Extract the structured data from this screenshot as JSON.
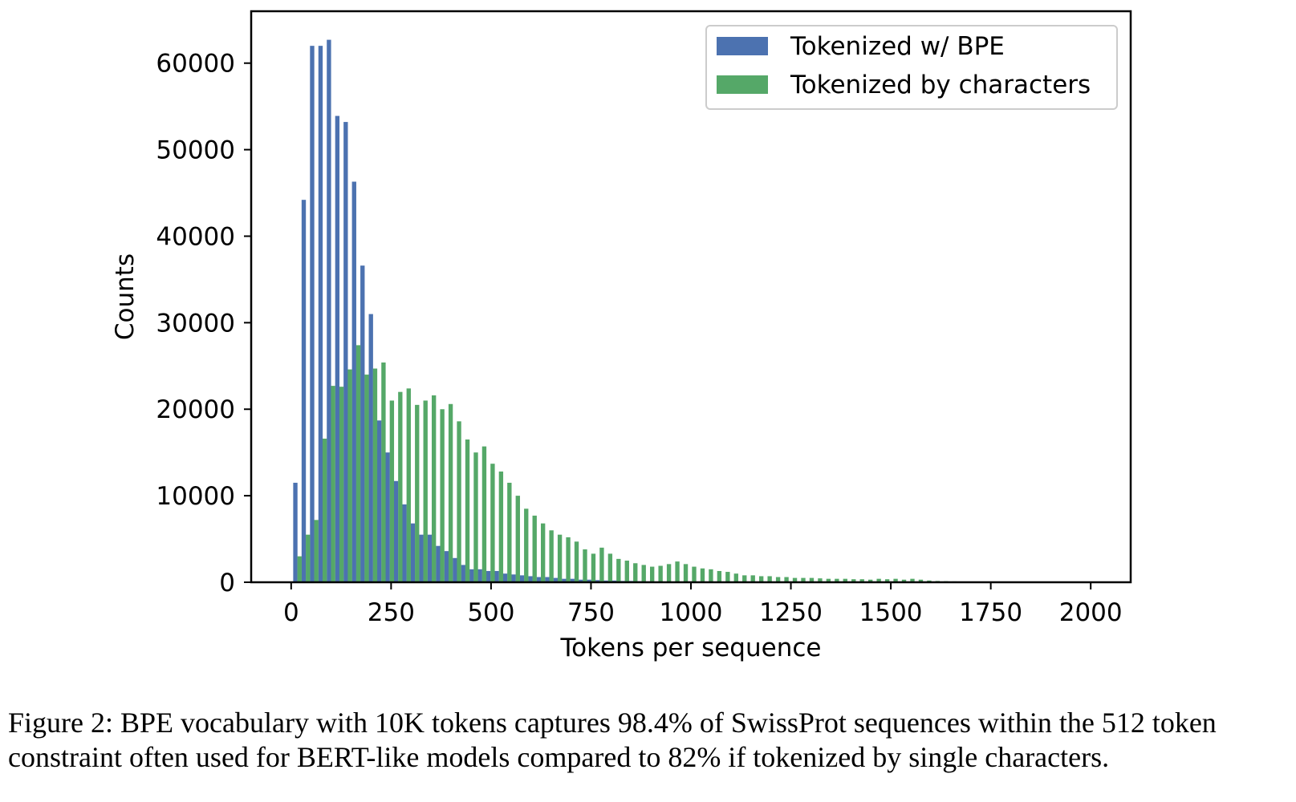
{
  "chart_data": {
    "type": "bar",
    "xlabel": "Tokens per sequence",
    "ylabel": "Counts",
    "xlim": [
      -100,
      2100
    ],
    "ylim": [
      0,
      66000
    ],
    "xticks": [
      0,
      250,
      500,
      750,
      1000,
      1250,
      1500,
      1750,
      2000
    ],
    "yticks": [
      0,
      10000,
      20000,
      30000,
      40000,
      50000,
      60000
    ],
    "bin_width": 21.5,
    "legend_position": "top-right",
    "grid": false,
    "series": [
      {
        "name": "Tokenized w/ BPE",
        "color": "#4c72b0",
        "x": [
          10.5,
          31.5,
          52.5,
          73.5,
          94.5,
          115.5,
          136.5,
          157.5,
          178.5,
          199.5,
          220.5,
          241.5,
          262.5,
          283.5,
          304.5,
          325.5,
          346.5,
          367.5,
          388.5,
          409.5,
          430.5,
          451.5,
          472.5,
          493.5,
          514.5,
          535.5,
          556.5,
          577.5,
          598.5,
          619.5,
          640.5,
          661.5,
          682.5,
          703.5,
          724.5,
          745.5,
          766.5,
          787.5,
          808.5,
          829.5,
          850.5,
          871.5,
          892.5,
          913.5,
          934.5,
          955.5,
          976.5
        ],
        "values": [
          11500,
          44200,
          62000,
          62000,
          62700,
          53900,
          53200,
          46300,
          36600,
          31000,
          18700,
          15000,
          11700,
          9000,
          6800,
          5500,
          5500,
          4200,
          3600,
          2800,
          2000,
          1500,
          1500,
          1300,
          1300,
          1000,
          900,
          800,
          700,
          600,
          600,
          500,
          400,
          400,
          300,
          300,
          250,
          200,
          200,
          150,
          150,
          120,
          100,
          80,
          60,
          50,
          40
        ]
      },
      {
        "name": "Tokenized by characters",
        "color": "#55a868",
        "x": [
          21,
          42,
          63,
          84,
          105,
          126,
          147,
          168,
          189,
          210,
          231,
          252,
          273,
          294,
          315,
          336,
          357,
          378,
          399,
          420,
          441,
          462,
          483,
          504,
          525,
          546,
          567,
          588,
          609,
          630,
          651,
          672,
          693,
          714,
          735,
          756,
          777,
          798,
          819,
          840,
          861,
          882,
          903,
          924,
          945,
          966,
          987,
          1008,
          1029,
          1050,
          1071,
          1092,
          1113,
          1134,
          1155,
          1176,
          1197,
          1218,
          1239,
          1260,
          1281,
          1302,
          1323,
          1344,
          1365,
          1386,
          1407,
          1428,
          1449,
          1470,
          1491,
          1512,
          1533,
          1554,
          1575,
          1596,
          1617,
          1638,
          1659,
          1680,
          1701,
          1722,
          1743,
          1764,
          1785,
          1806,
          1827,
          1848,
          1869,
          1890,
          1911,
          1932,
          1953,
          1974,
          1995
        ],
        "values": [
          3000,
          5500,
          7200,
          16600,
          22700,
          22600,
          24600,
          27400,
          24000,
          24700,
          25400,
          21000,
          22000,
          22400,
          20500,
          21000,
          21600,
          20000,
          20600,
          18600,
          16500,
          15000,
          15700,
          13700,
          12800,
          11500,
          10000,
          8500,
          7700,
          6800,
          6000,
          5500,
          5200,
          4700,
          3800,
          3300,
          4000,
          3300,
          2700,
          2500,
          2200,
          2000,
          1800,
          1900,
          2100,
          2400,
          2100,
          1800,
          1600,
          1500,
          1300,
          1200,
          1000,
          800,
          800,
          700,
          700,
          600,
          600,
          500,
          500,
          500,
          450,
          400,
          400,
          400,
          350,
          350,
          300,
          400,
          350,
          400,
          300,
          400,
          300,
          200,
          150,
          120,
          100,
          90,
          80,
          70,
          60,
          60,
          50,
          40,
          40,
          30,
          30,
          30,
          20,
          20,
          20,
          20,
          10
        ]
      }
    ]
  },
  "caption": "Figure 2: BPE vocabulary with 10K tokens captures 98.4% of SwissProt sequences within the 512 token constraint often used for BERT-like models compared to 82% if tokenized by single characters."
}
